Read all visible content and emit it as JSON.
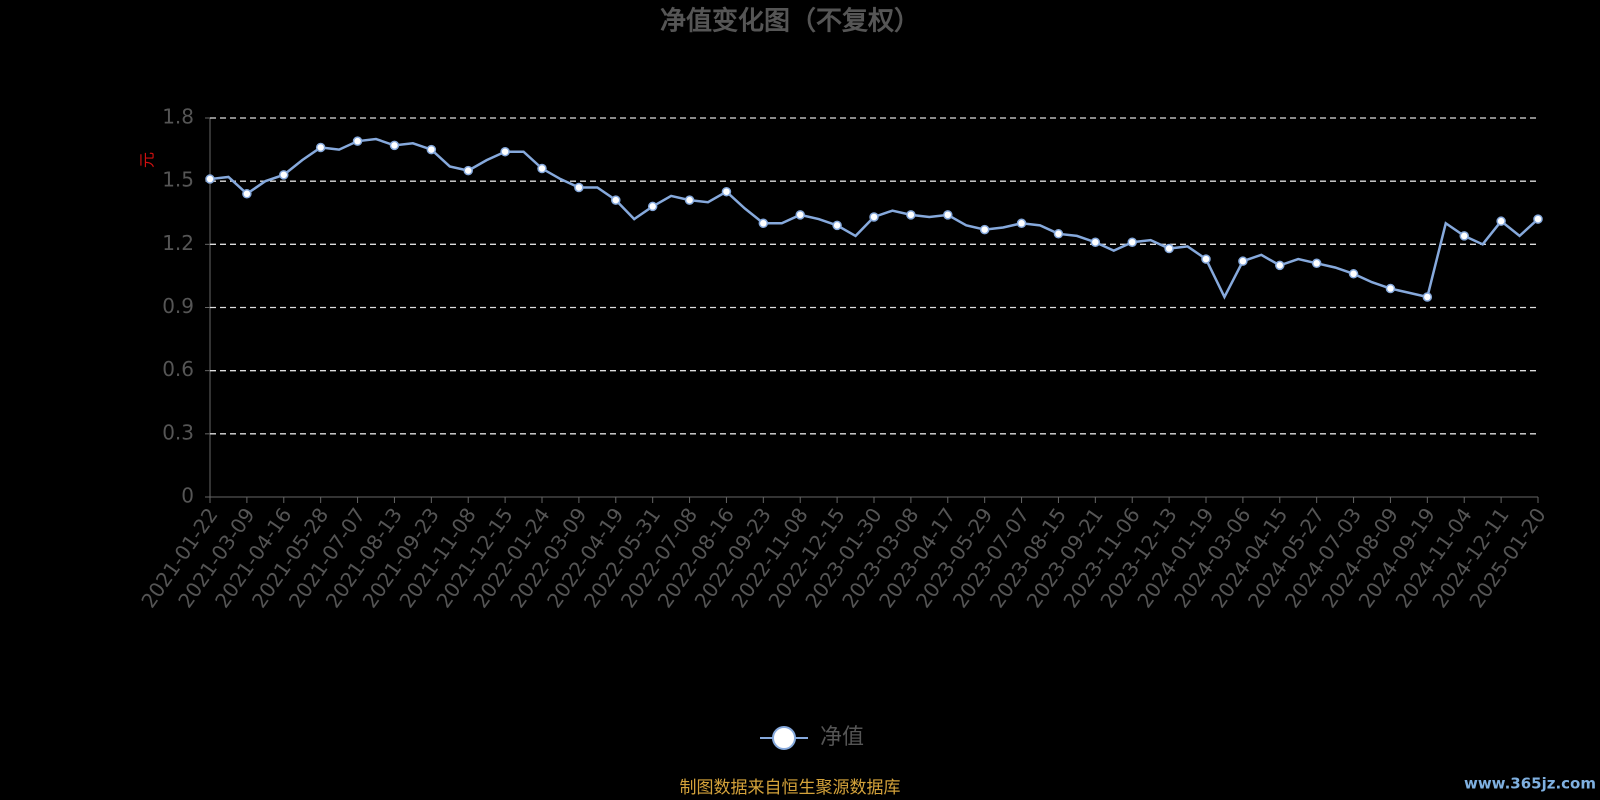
{
  "chart_data": {
    "type": "line",
    "title": "净值变化图（不复权）",
    "y_label": "元",
    "categories": [
      "2021-01-22",
      null,
      "2021-03-09",
      null,
      "2021-04-16",
      null,
      "2021-05-28",
      null,
      "2021-07-07",
      null,
      "2021-08-13",
      null,
      "2021-09-23",
      null,
      "2021-11-08",
      null,
      "2021-12-15",
      null,
      "2022-01-24",
      null,
      "2022-03-09",
      null,
      "2022-04-19",
      null,
      "2022-05-31",
      null,
      "2022-07-08",
      null,
      "2022-08-16",
      null,
      "2022-09-23",
      null,
      "2022-11-08",
      null,
      "2022-12-15",
      null,
      "2023-01-30",
      null,
      "2023-03-08",
      null,
      "2023-04-17",
      null,
      "2023-05-29",
      null,
      "2023-07-07",
      null,
      "2023-08-15",
      null,
      "2023-09-21",
      null,
      "2023-11-06",
      null,
      "2023-12-13",
      null,
      "2024-01-19",
      null,
      "2024-03-06",
      null,
      "2024-04-15",
      null,
      "2024-05-27",
      null,
      "2024-07-03",
      null,
      "2024-08-09",
      null,
      "2024-09-19",
      null,
      "2024-11-04",
      null,
      "2024-12-11",
      null,
      "2025-01-20"
    ],
    "series": [
      {
        "name": "净值",
        "color": "#86a9dc",
        "values": [
          1.51,
          1.52,
          1.44,
          1.5,
          1.53,
          1.6,
          1.66,
          1.65,
          1.69,
          1.7,
          1.67,
          1.68,
          1.65,
          1.57,
          1.55,
          1.6,
          1.64,
          1.64,
          1.56,
          1.51,
          1.47,
          1.47,
          1.41,
          1.32,
          1.38,
          1.43,
          1.41,
          1.4,
          1.45,
          1.37,
          1.3,
          1.3,
          1.34,
          1.32,
          1.29,
          1.24,
          1.33,
          1.36,
          1.34,
          1.33,
          1.34,
          1.29,
          1.27,
          1.28,
          1.3,
          1.29,
          1.25,
          1.24,
          1.21,
          1.17,
          1.21,
          1.22,
          1.18,
          1.19,
          1.13,
          0.95,
          1.12,
          1.15,
          1.1,
          1.13,
          1.11,
          1.09,
          1.06,
          1.02,
          0.99,
          0.97,
          0.95,
          1.3,
          1.24,
          1.2,
          1.31,
          1.24,
          1.32
        ]
      }
    ],
    "ylim": [
      0,
      1.8
    ],
    "yticks": [
      0,
      0.3,
      0.6,
      0.9,
      1.2,
      1.5,
      1.8
    ],
    "grid": true,
    "source": "制图数据来自恒生聚源数据库",
    "watermark": "www.365jz.com"
  }
}
